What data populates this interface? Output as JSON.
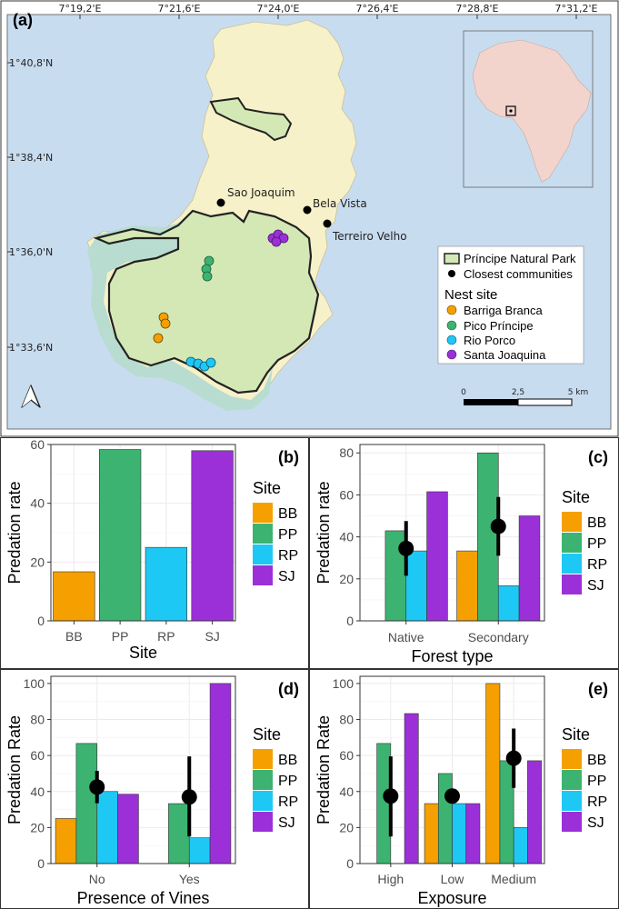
{
  "colors": {
    "BB": "#f5a000",
    "PP": "#3cb371",
    "RP": "#1ec8f5",
    "SJ": "#9b30d9",
    "sea": "#c8dcf0",
    "land": "#f6f1c9",
    "forest": "#d4e8b6",
    "buffer": "#b8dccf"
  },
  "map": {
    "panel_label": "(a)",
    "lon_ticks": [
      "7°19,2'E",
      "7°21,6'E",
      "7°24,0'E",
      "7°26,4'E",
      "7°28,8'E",
      "7°31,2'E"
    ],
    "lat_ticks": [
      "1°40,8'N",
      "1°38,4'N",
      "1°36,0'N",
      "1°33,6'N"
    ],
    "communities": [
      "Sao Joaquim",
      "Bela Vista",
      "Terreiro Velho"
    ],
    "legend": {
      "park": "Príncipe Natural Park",
      "communities": "Closest communities",
      "nest_title": "Nest site",
      "sites": [
        "Barriga Branca",
        "Pico Príncipe",
        "Rio Porco",
        "Santa Joaquina"
      ]
    },
    "scalebar": {
      "labels": [
        "0",
        "2,5",
        "5 km"
      ]
    },
    "north_icon": "north-arrow-icon"
  },
  "chart_data": [
    {
      "panel": "(b)",
      "type": "bar",
      "xlabel": "Site",
      "ylabel": "Predation rate",
      "categories": [
        "BB",
        "PP",
        "RP",
        "SJ"
      ],
      "values": [
        16.7,
        58.3,
        25.0,
        57.9
      ],
      "ylim": [
        0,
        60
      ],
      "yticks": [
        0,
        20,
        40,
        60
      ],
      "legend_title": "Site",
      "legend": [
        "BB",
        "PP",
        "RP",
        "SJ"
      ],
      "grid": true
    },
    {
      "panel": "(c)",
      "type": "bar",
      "xlabel": "Forest type",
      "ylabel": "Predation rate",
      "categories": [
        "Native",
        "Secondary"
      ],
      "series": [
        {
          "name": "BB",
          "values": [
            0,
            33.3
          ]
        },
        {
          "name": "PP",
          "values": [
            42.9,
            80.0
          ]
        },
        {
          "name": "RP",
          "values": [
            33.3,
            16.7
          ]
        },
        {
          "name": "SJ",
          "values": [
            61.5,
            50.0
          ]
        }
      ],
      "mean": [
        34.5,
        45.0
      ],
      "error": [
        [
          21.5,
          47.5
        ],
        [
          31.0,
          59.0
        ]
      ],
      "ylim": [
        0,
        84
      ],
      "yticks": [
        0,
        20,
        40,
        60,
        80
      ],
      "legend_title": "Site",
      "legend": [
        "BB",
        "PP",
        "RP",
        "SJ"
      ],
      "grid": true
    },
    {
      "panel": "(d)",
      "type": "bar",
      "xlabel": "Presence of Vines",
      "ylabel": "Predation Rate",
      "categories": [
        "No",
        "Yes"
      ],
      "series": [
        {
          "name": "BB",
          "values": [
            25.0,
            0
          ]
        },
        {
          "name": "PP",
          "values": [
            66.7,
            33.3
          ]
        },
        {
          "name": "RP",
          "values": [
            40.0,
            14.3
          ]
        },
        {
          "name": "SJ",
          "values": [
            38.5,
            100.0
          ]
        }
      ],
      "mean": [
        42.5,
        37.0
      ],
      "error": [
        [
          33.5,
          51.5
        ],
        [
          15.0,
          59.5
        ]
      ],
      "ylim": [
        0,
        104
      ],
      "yticks": [
        0,
        20,
        40,
        60,
        80,
        100
      ],
      "legend_title": "Site",
      "legend": [
        "BB",
        "PP",
        "RP",
        "SJ"
      ],
      "grid": true
    },
    {
      "panel": "(e)",
      "type": "bar",
      "xlabel": "Exposure",
      "ylabel": "Predation Rate",
      "categories": [
        "High",
        "Low",
        "Medium"
      ],
      "series": [
        {
          "name": "BB",
          "values": [
            0,
            33.3,
            100.0
          ]
        },
        {
          "name": "PP",
          "values": [
            66.7,
            50.0,
            57.1
          ]
        },
        {
          "name": "RP",
          "values": [
            0,
            33.3,
            20.0
          ]
        },
        {
          "name": "SJ",
          "values": [
            83.3,
            33.3,
            57.1
          ]
        }
      ],
      "mean": [
        37.5,
        37.5,
        58.5
      ],
      "error": [
        [
          15.0,
          59.5
        ],
        [
          37.5,
          37.5
        ],
        [
          42.0,
          75.0
        ]
      ],
      "ylim": [
        0,
        104
      ],
      "yticks": [
        0,
        20,
        40,
        60,
        80,
        100
      ],
      "legend_title": "Site",
      "legend": [
        "BB",
        "PP",
        "RP",
        "SJ"
      ],
      "grid": true
    }
  ]
}
